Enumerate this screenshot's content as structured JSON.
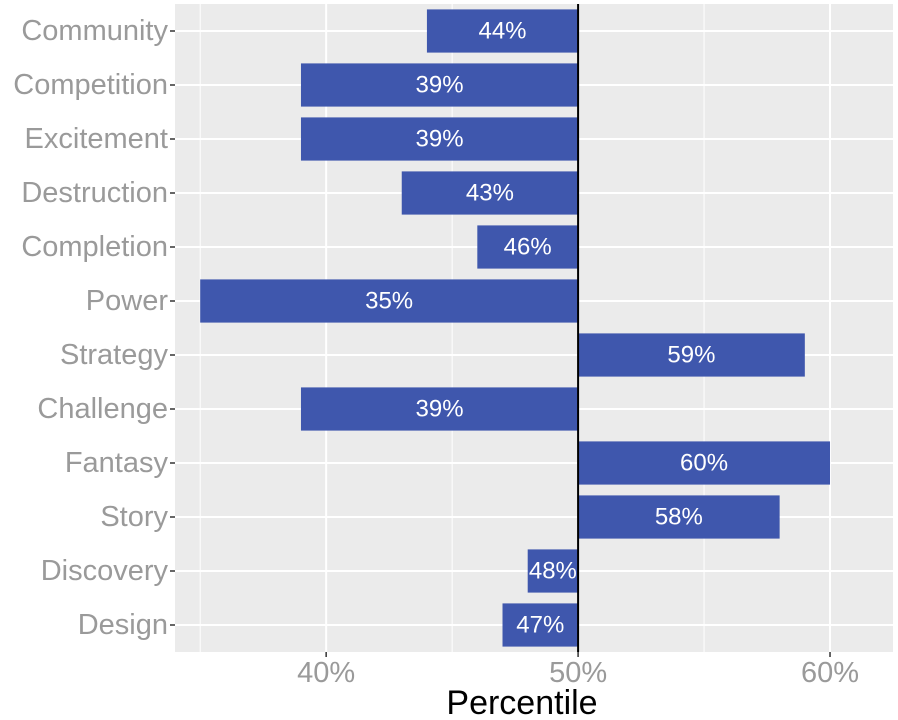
{
  "chart_data": {
    "type": "bar",
    "orientation": "horizontal",
    "title": "",
    "xlabel": "Percentile",
    "ylabel": "",
    "baseline": 50,
    "xlim": [
      34,
      62.5
    ],
    "xticks": [
      40,
      50,
      60
    ],
    "xtick_labels": [
      "40%",
      "50%",
      "60%"
    ],
    "grid": true,
    "legend": "none",
    "categories": [
      "Community",
      "Competition",
      "Excitement",
      "Destruction",
      "Completion",
      "Power",
      "Strategy",
      "Challenge",
      "Fantasy",
      "Story",
      "Discovery",
      "Design"
    ],
    "values": [
      44,
      39,
      39,
      43,
      46,
      35,
      59,
      39,
      60,
      58,
      48,
      47
    ],
    "value_labels": [
      "44%",
      "39%",
      "39%",
      "43%",
      "46%",
      "35%",
      "59%",
      "39%",
      "60%",
      "58%",
      "48%",
      "47%"
    ]
  },
  "colors": {
    "bar": "#3f57ad",
    "panel_background": "#ebebeb",
    "gridline": "#ffffff",
    "baseline": "#000000",
    "category_text": "#9a9a9a",
    "tick_text": "#9a9a9a",
    "bar_text": "#ffffff",
    "axis_title_text": "#000000"
  }
}
